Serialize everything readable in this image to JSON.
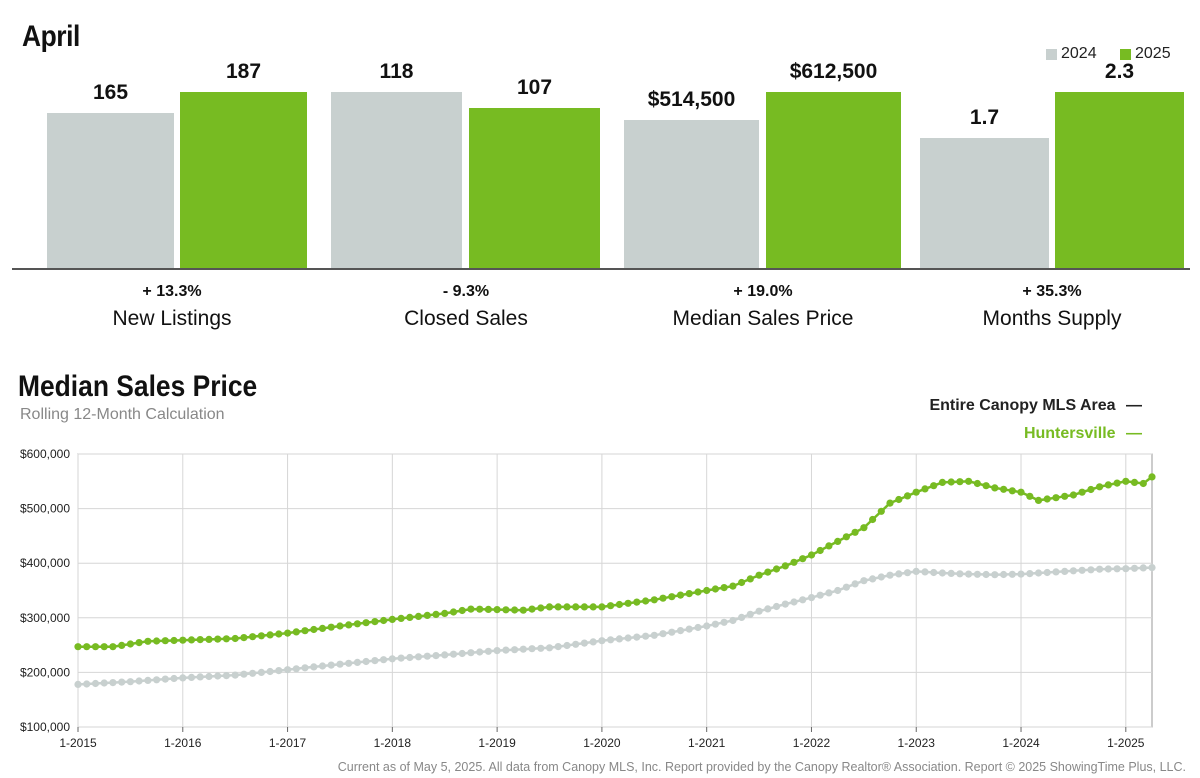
{
  "top": {
    "title": "April",
    "legend": [
      {
        "label": "2024",
        "color": "#c8d0cf"
      },
      {
        "label": "2025",
        "color": "#77bb22"
      }
    ]
  },
  "metrics": [
    {
      "name": "New Listings",
      "v2024": "165",
      "v2025": "187",
      "change": "+ 13.3%"
    },
    {
      "name": "Closed Sales",
      "v2024": "118",
      "v2025": "107",
      "change": "- 9.3%"
    },
    {
      "name": "Median Sales Price",
      "v2024": "$514,500",
      "v2025": "$612,500",
      "change": "+ 19.0%"
    },
    {
      "name": "Months Supply",
      "v2024": "1.7",
      "v2025": "2.3",
      "change": "+ 35.3%"
    }
  ],
  "line_section": {
    "title": "Median Sales Price",
    "subtitle": "Rolling 12-Month Calculation",
    "legend": [
      {
        "label": "Entire Canopy MLS Area",
        "marker": "—",
        "color": "#222222"
      },
      {
        "label": "Huntersville",
        "marker": "—",
        "color": "#77bb22"
      }
    ]
  },
  "footer": "Current as of May 5, 2025. All data from Canopy MLS, Inc. Report provided by the Canopy Realtor® Association. Report © 2025 ShowingTime Plus, LLC.",
  "chart_data": [
    {
      "type": "bar",
      "title": "April",
      "categories": [
        "New Listings",
        "Closed Sales",
        "Median Sales Price",
        "Months Supply"
      ],
      "series": [
        {
          "name": "2024",
          "values": [
            165,
            118,
            514500,
            1.7
          ],
          "color": "#c8d0cf"
        },
        {
          "name": "2025",
          "values": [
            187,
            107,
            612500,
            2.3
          ],
          "color": "#77bb22"
        }
      ],
      "changes": [
        "+ 13.3%",
        "- 9.3%",
        "+ 19.0%",
        "+ 35.3%"
      ]
    },
    {
      "type": "line",
      "title": "Median Sales Price",
      "subtitle": "Rolling 12-Month Calculation",
      "x_ticks": [
        "1-2015",
        "1-2016",
        "1-2017",
        "1-2018",
        "1-2019",
        "1-2020",
        "1-2021",
        "1-2022",
        "1-2023",
        "1-2024",
        "1-2025"
      ],
      "y_ticks": [
        "$100,000",
        "$200,000",
        "$300,000",
        "$400,000",
        "$500,000",
        "$600,000"
      ],
      "ylim": [
        100000,
        600000
      ],
      "xlim": [
        "2015-01",
        "2025-04"
      ],
      "grid": true,
      "legend_position": "top-right",
      "series": [
        {
          "name": "Entire Canopy MLS Area",
          "color": "#c8d0cf",
          "points": [
            [
              "2015-01",
              178000
            ],
            [
              "2015-07",
              183000
            ],
            [
              "2016-01",
              190000
            ],
            [
              "2016-07",
              195000
            ],
            [
              "2017-01",
              205000
            ],
            [
              "2017-07",
              215000
            ],
            [
              "2018-01",
              225000
            ],
            [
              "2018-07",
              232000
            ],
            [
              "2019-01",
              240000
            ],
            [
              "2019-07",
              245000
            ],
            [
              "2020-01",
              258000
            ],
            [
              "2020-07",
              268000
            ],
            [
              "2021-01",
              285000
            ],
            [
              "2021-04",
              295000
            ],
            [
              "2021-07",
              312000
            ],
            [
              "2021-10",
              325000
            ],
            [
              "2022-01",
              337000
            ],
            [
              "2022-04",
              350000
            ],
            [
              "2022-07",
              368000
            ],
            [
              "2022-10",
              378000
            ],
            [
              "2023-01",
              385000
            ],
            [
              "2023-04",
              382000
            ],
            [
              "2023-07",
              380000
            ],
            [
              "2023-10",
              379000
            ],
            [
              "2024-01",
              380000
            ],
            [
              "2024-04",
              383000
            ],
            [
              "2024-07",
              386000
            ],
            [
              "2024-10",
              389000
            ],
            [
              "2025-01",
              390000
            ],
            [
              "2025-04",
              392000
            ]
          ]
        },
        {
          "name": "Huntersville",
          "color": "#77bb22",
          "points": [
            [
              "2015-01",
              247000
            ],
            [
              "2015-05",
              247000
            ],
            [
              "2015-09",
              257000
            ],
            [
              "2016-01",
              259000
            ],
            [
              "2016-07",
              262000
            ],
            [
              "2017-01",
              272000
            ],
            [
              "2017-07",
              285000
            ],
            [
              "2018-01",
              297000
            ],
            [
              "2018-07",
              308000
            ],
            [
              "2018-10",
              316000
            ],
            [
              "2019-01",
              315000
            ],
            [
              "2019-04",
              314000
            ],
            [
              "2019-07",
              320000
            ],
            [
              "2020-01",
              320000
            ],
            [
              "2020-07",
              333000
            ],
            [
              "2021-01",
              350000
            ],
            [
              "2021-04",
              358000
            ],
            [
              "2021-07",
              378000
            ],
            [
              "2021-10",
              395000
            ],
            [
              "2022-01",
              415000
            ],
            [
              "2022-04",
              440000
            ],
            [
              "2022-07",
              465000
            ],
            [
              "2022-10",
              510000
            ],
            [
              "2023-01",
              530000
            ],
            [
              "2023-04",
              548000
            ],
            [
              "2023-07",
              550000
            ],
            [
              "2023-10",
              538000
            ],
            [
              "2024-01",
              530000
            ],
            [
              "2024-03",
              515000
            ],
            [
              "2024-07",
              525000
            ],
            [
              "2024-10",
              540000
            ],
            [
              "2025-01",
              550000
            ],
            [
              "2025-03",
              546000
            ],
            [
              "2025-04",
              558000
            ]
          ]
        }
      ]
    }
  ]
}
